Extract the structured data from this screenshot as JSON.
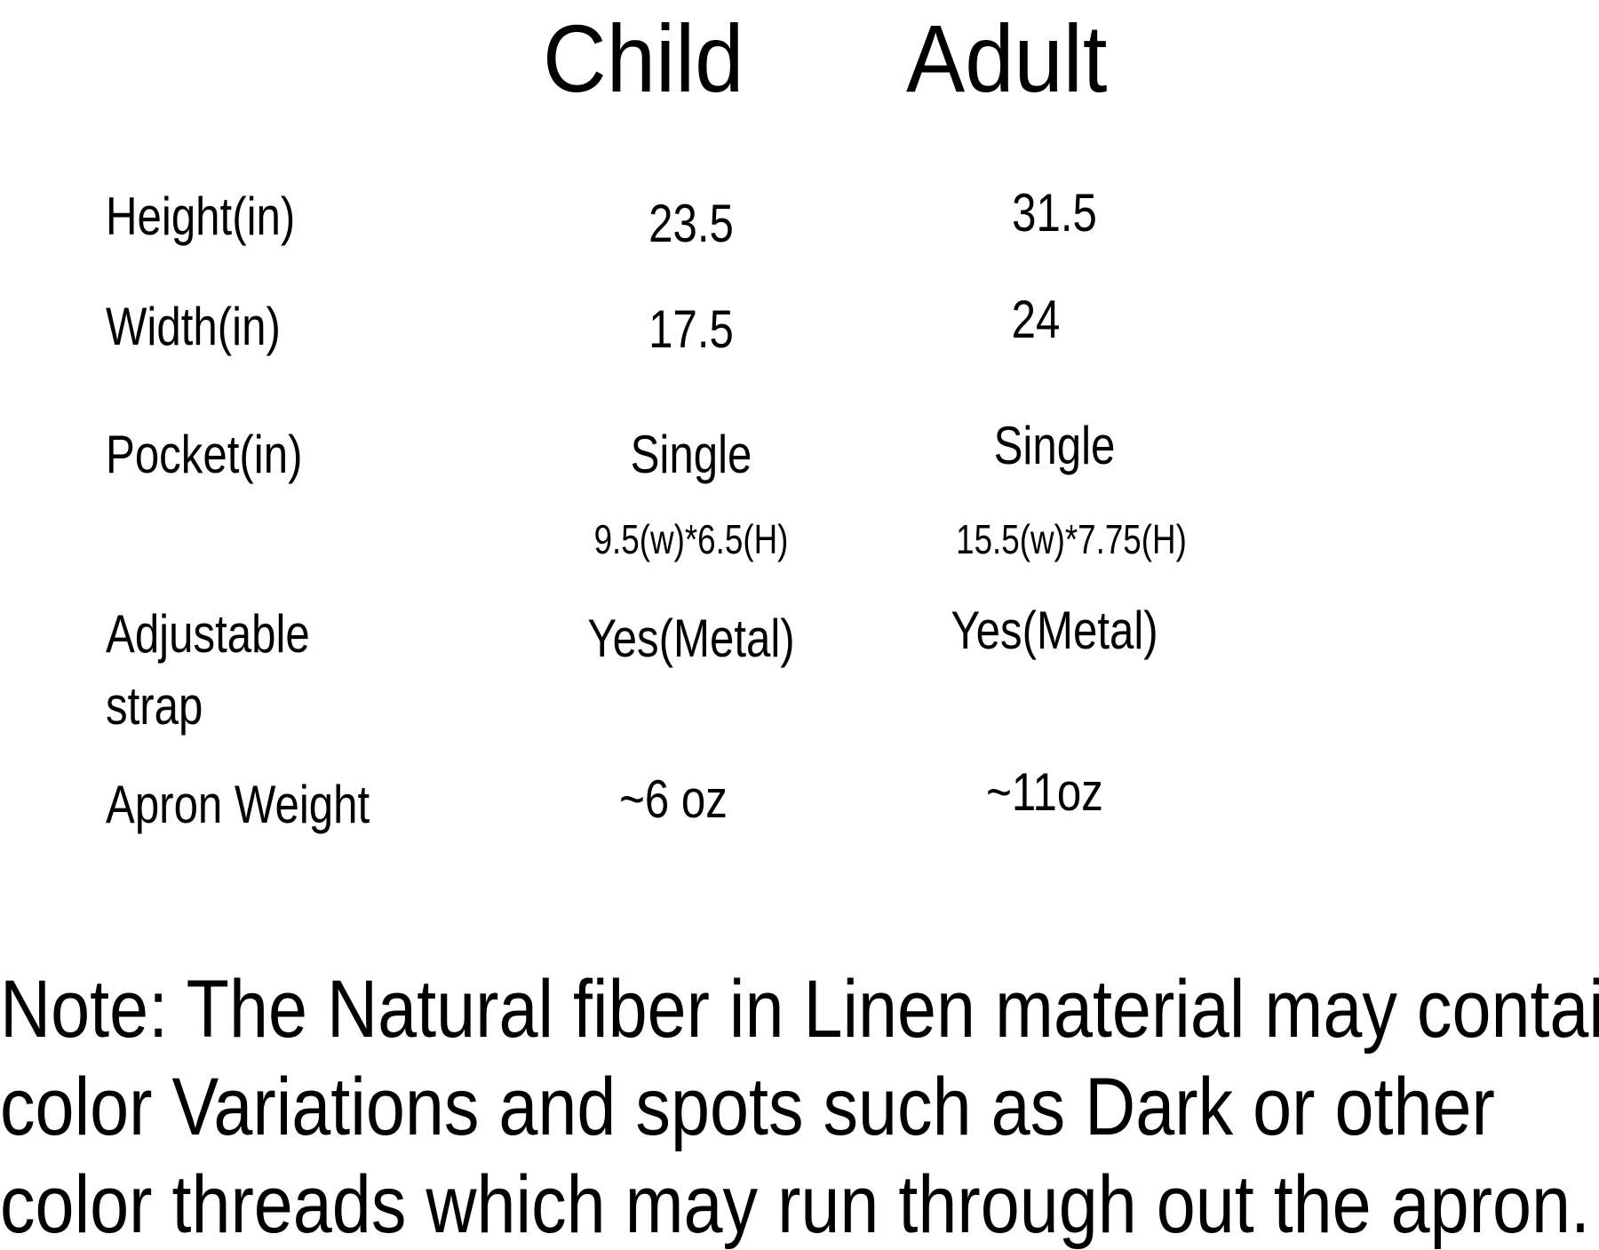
{
  "header": {
    "child": "Child",
    "adult": "Adult"
  },
  "rows": [
    {
      "label": "Height(in)",
      "child": "23.5",
      "adult": "31.5"
    },
    {
      "label": "Width(in)",
      "child": "17.5",
      "adult": "24"
    },
    {
      "label": "Pocket(in)",
      "child": "Single",
      "adult": "Single",
      "child_detail": "9.5(w)*6.5(H)",
      "adult_detail": "15.5(w)*7.75(H)"
    },
    {
      "label_line1": "Adjustable",
      "label_line2": "strap",
      "child": "Yes(Metal)",
      "adult": "Yes(Metal)"
    },
    {
      "label": "Apron Weight",
      "child": "~6 oz",
      "adult": "~11oz"
    }
  ],
  "note": {
    "line1": "Note: The Natural fiber in Linen material may contain",
    "line2": "color Variations and spots such as Dark or other",
    "line3": "color threads which may run through out the apron."
  }
}
